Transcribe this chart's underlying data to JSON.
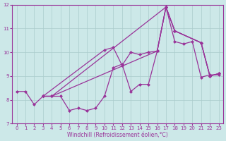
{
  "xlabel": "Windchill (Refroidissement éolien,°C)",
  "ylabel": "",
  "bg_color": "#cce8e8",
  "line_color": "#993399",
  "grid_color": "#aacccc",
  "xlim": [
    -0.5,
    23.5
  ],
  "ylim": [
    7,
    12
  ],
  "yticks": [
    7,
    8,
    9,
    10,
    11,
    12
  ],
  "xticks": [
    0,
    1,
    2,
    3,
    4,
    5,
    6,
    7,
    8,
    9,
    10,
    11,
    12,
    13,
    14,
    15,
    16,
    17,
    18,
    19,
    20,
    21,
    22,
    23
  ],
  "line1_x": [
    0,
    1,
    2,
    3,
    4,
    5,
    6,
    7,
    8,
    9,
    10,
    11,
    12,
    13,
    14,
    15,
    16,
    17,
    18,
    19,
    20,
    21,
    22,
    23
  ],
  "line1_y": [
    8.35,
    8.35,
    7.8,
    8.15,
    8.15,
    8.15,
    7.55,
    7.65,
    7.55,
    7.65,
    8.15,
    9.35,
    9.5,
    8.35,
    8.65,
    8.65,
    10.05,
    11.9,
    10.45,
    10.35,
    10.45,
    8.95,
    9.05,
    9.05
  ],
  "line2_x": [
    3,
    4,
    17,
    18,
    21,
    22,
    23
  ],
  "line2_y": [
    8.15,
    8.15,
    11.9,
    10.9,
    10.4,
    9.0,
    9.1
  ],
  "line3_x": [
    3,
    4,
    16,
    17,
    18,
    21,
    22,
    23
  ],
  "line3_y": [
    8.15,
    8.15,
    10.05,
    11.9,
    10.9,
    10.4,
    9.0,
    9.1
  ],
  "line4_x": [
    3,
    10,
    11,
    12,
    13,
    14,
    15,
    16,
    17,
    18,
    21,
    22,
    23
  ],
  "line4_y": [
    8.15,
    10.1,
    10.2,
    9.45,
    10.0,
    9.9,
    10.0,
    10.05,
    11.9,
    10.9,
    10.4,
    9.0,
    9.1
  ],
  "marker": "D",
  "markersize": 2.0,
  "linewidth": 0.9,
  "tick_fontsize": 5,
  "label_fontsize": 5.5
}
